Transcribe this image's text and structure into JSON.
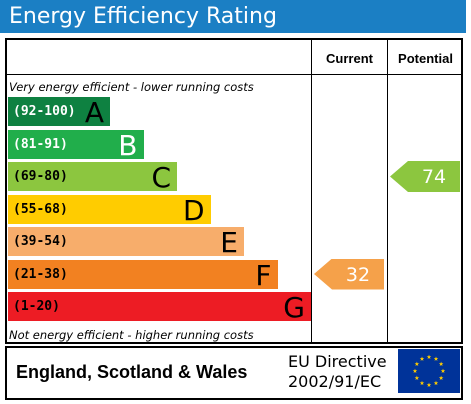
{
  "title": "Energy Efficiency Rating",
  "columns": {
    "current": "Current",
    "potential": "Potential"
  },
  "top_note": "Very energy efficient - lower running costs",
  "bottom_note": "Not energy efficient - higher running costs",
  "footer": {
    "region": "England, Scotland & Wales",
    "directive_line1": "EU Directive",
    "directive_line2": "2002/91/EC"
  },
  "colors": {
    "title_bg": "#1b7fc4",
    "arrow_current": "#f5a14a",
    "arrow_potential": "#8cc63f",
    "flag_bg": "#003399",
    "flag_stars": "#ffcc00"
  },
  "chart_data": {
    "type": "bar",
    "categories": [
      "A",
      "B",
      "C",
      "D",
      "E",
      "F",
      "G"
    ],
    "bands": [
      {
        "letter": "A",
        "range": "(92-100)",
        "color": "#0e8141"
      },
      {
        "letter": "B",
        "range": "(81-91)",
        "color": "#21ae4b"
      },
      {
        "letter": "C",
        "range": "(69-80)",
        "color": "#8cc63f"
      },
      {
        "letter": "D",
        "range": "(55-68)",
        "color": "#ffcc00"
      },
      {
        "letter": "E",
        "range": "(39-54)",
        "color": "#f7ad6b"
      },
      {
        "letter": "F",
        "range": "(21-38)",
        "color": "#f28121"
      },
      {
        "letter": "G",
        "range": "(1-20)",
        "color": "#ed1c24"
      }
    ],
    "current": {
      "value": 32,
      "band": "F"
    },
    "potential": {
      "value": 74,
      "band": "C"
    }
  }
}
